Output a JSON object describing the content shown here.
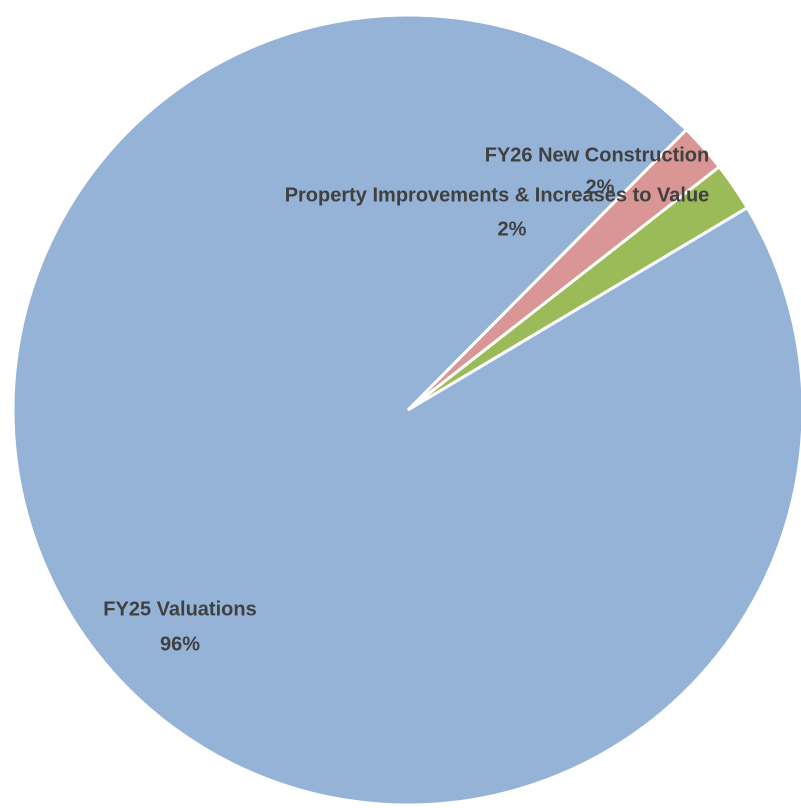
{
  "chart_data": {
    "type": "pie",
    "categories": [
      "FY26 New Construction",
      "Property Improvements & Increases to Value",
      "FY25 Valuations"
    ],
    "values": [
      2,
      2,
      96
    ],
    "value_labels": [
      "2%",
      "2%",
      "96%"
    ],
    "colors": [
      "#d99694",
      "#9bbb59",
      "#95b3d7"
    ]
  }
}
